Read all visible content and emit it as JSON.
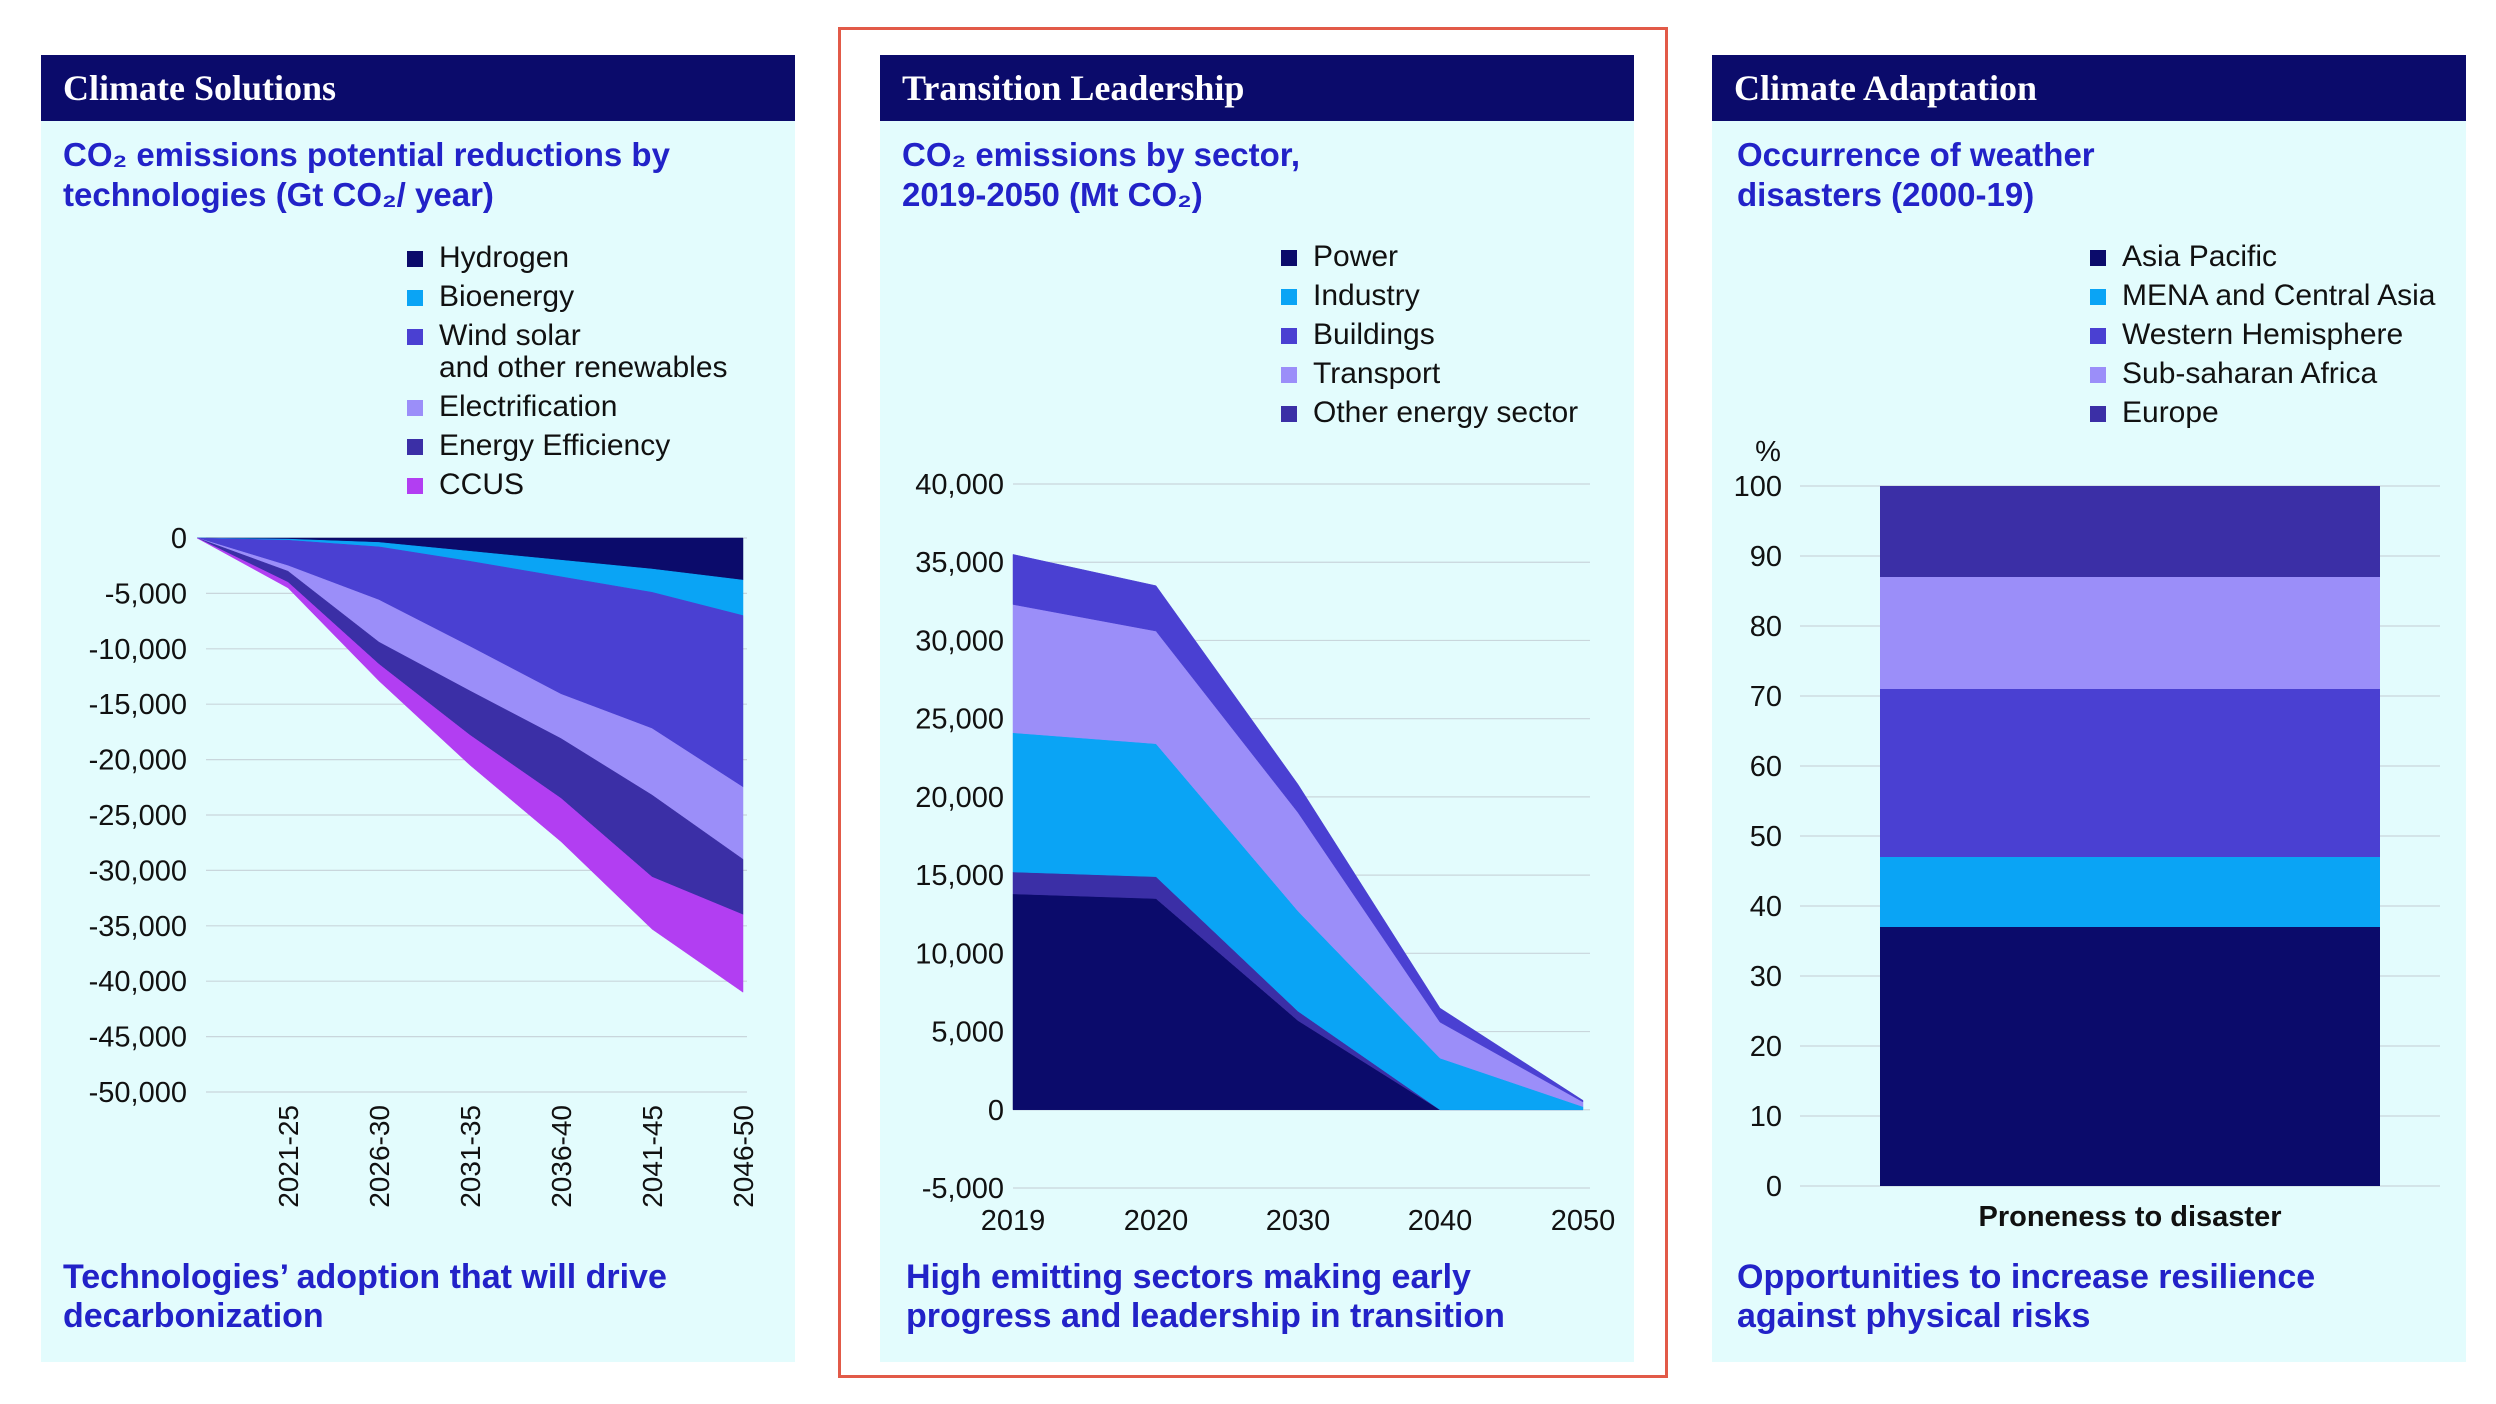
{
  "panels": [
    {
      "header": "Climate Solutions",
      "subtitle_line1": "CO₂ emissions potential reductions by",
      "subtitle_line2": "technologies (Gt CO₂/ year)",
      "footer_line1": "Technologies’ adoption that will drive",
      "footer_line2": "decarbonization",
      "legend": [
        {
          "label": "Hydrogen",
          "color": "#0b0b6b"
        },
        {
          "label": "Bioenergy",
          "color": "#0aa4f5"
        },
        {
          "label": "Wind solar",
          "label2": "and other renewables",
          "color": "#4a40d2"
        },
        {
          "label": "Electrification",
          "color": "#9b8ef9"
        },
        {
          "label": "Energy Efficiency",
          "color": "#3b2fa6"
        },
        {
          "label": "CCUS",
          "color": "#b23ef2"
        }
      ]
    },
    {
      "header": "Transition Leadership",
      "subtitle_line1": "CO₂ emissions by sector,",
      "subtitle_line2": "2019-2050 (Mt CO₂)",
      "footer_line1": "High emitting sectors making early",
      "footer_line2": "progress and leadership in transition",
      "legend": [
        {
          "label": "Power",
          "color": "#0b0b6b"
        },
        {
          "label": "Industry",
          "color": "#0aa4f5"
        },
        {
          "label": "Buildings",
          "color": "#4a40d2"
        },
        {
          "label": "Transport",
          "color": "#9b8ef9"
        },
        {
          "label": "Other energy sector",
          "color": "#3b2fa6"
        }
      ]
    },
    {
      "header": "Climate Adaptation",
      "subtitle_line1": "Occurrence of weather",
      "subtitle_line2": "disasters (2000-19)",
      "footer_line1": "Opportunities to increase resilience",
      "footer_line2": "against physical risks",
      "legend": [
        {
          "label": "Asia Pacific",
          "color": "#0b0b6b"
        },
        {
          "label": "MENA and Central Asia",
          "color": "#0aa4f5"
        },
        {
          "label": "Western Hemisphere",
          "color": "#4a40d2"
        },
        {
          "label": "Sub-saharan Africa",
          "color": "#9b8ef9"
        },
        {
          "label": "Europe",
          "color": "#3b2fa6"
        }
      ]
    }
  ],
  "chart_data": [
    {
      "type": "area",
      "title": "CO₂ emissions potential reductions by technologies (Gt CO₂/ year)",
      "x": [
        "",
        "2021-25",
        "2026-30",
        "2031-35",
        "2036-40",
        "2041-45",
        "2046-50"
      ],
      "ylim": [
        -50000,
        0
      ],
      "yticks": [
        0,
        -5000,
        -10000,
        -15000,
        -20000,
        -25000,
        -30000,
        -35000,
        -40000,
        -45000,
        -50000
      ],
      "ytick_labels": [
        "0",
        "-5,000",
        "-10,000",
        "-15,000",
        "-20,000",
        "-25,000",
        "-30,000",
        "-35,000",
        "-40,000",
        "-45,000",
        "-50,000"
      ],
      "series": [
        {
          "name": "Hydrogen",
          "values": [
            0,
            -100,
            -400,
            -1200,
            -2000,
            -2800,
            -3800
          ]
        },
        {
          "name": "Bioenergy",
          "values": [
            0,
            -100,
            -400,
            -900,
            -1500,
            -2100,
            -3200
          ]
        },
        {
          "name": "Wind solar and other renewables",
          "values": [
            0,
            -2300,
            -4800,
            -7700,
            -10600,
            -12300,
            -15500
          ]
        },
        {
          "name": "Electrification",
          "values": [
            0,
            -500,
            -3800,
            -4000,
            -4000,
            -6000,
            -6500
          ]
        },
        {
          "name": "Energy Efficiency",
          "values": [
            0,
            -1000,
            -2000,
            -4000,
            -5400,
            -7400,
            -5000
          ]
        },
        {
          "name": "CCUS",
          "values": [
            0,
            -500,
            -1500,
            -2700,
            -3900,
            -4700,
            -7000
          ]
        }
      ]
    },
    {
      "type": "area",
      "title": "CO₂ emissions by sector, 2019-2050 (Mt CO₂)",
      "x": [
        "2019",
        "2020",
        "2030",
        "2040",
        "2050"
      ],
      "ylim": [
        -5000,
        40000
      ],
      "yticks": [
        -5000,
        0,
        5000,
        10000,
        15000,
        20000,
        25000,
        30000,
        35000,
        40000
      ],
      "ytick_labels": [
        "-5,000",
        "0",
        "5,000",
        "10,000",
        "15,000",
        "20,000",
        "25,000",
        "30,000",
        "35,000",
        "40,000"
      ],
      "series": [
        {
          "name": "Power",
          "values": [
            13800,
            13500,
            5700,
            0,
            0
          ]
        },
        {
          "name": "Other energy sector",
          "values": [
            1400,
            1400,
            600,
            0,
            0
          ]
        },
        {
          "name": "Industry",
          "values": [
            8900,
            8500,
            6400,
            3300,
            200
          ]
        },
        {
          "name": "Transport",
          "values": [
            8200,
            7200,
            6300,
            2300,
            300
          ]
        },
        {
          "name": "Buildings",
          "values": [
            3200,
            2900,
            1800,
            900,
            100
          ]
        }
      ]
    },
    {
      "type": "bar",
      "title": "Occurrence of weather disasters (2000-19)",
      "categories": [
        "Proneness to disaster"
      ],
      "ylabel": "%",
      "ylim": [
        0,
        100
      ],
      "yticks": [
        0,
        10,
        20,
        30,
        40,
        50,
        60,
        70,
        80,
        90,
        100
      ],
      "ytick_labels": [
        "0",
        "10",
        "20",
        "30",
        "40",
        "50",
        "60",
        "70",
        "80",
        "90",
        "100"
      ],
      "series": [
        {
          "name": "Asia Pacific",
          "values": [
            37
          ]
        },
        {
          "name": "MENA and Central Asia",
          "values": [
            10
          ]
        },
        {
          "name": "Western Hemisphere",
          "values": [
            24
          ]
        },
        {
          "name": "Sub-saharan Africa",
          "values": [
            16
          ]
        },
        {
          "name": "Europe",
          "values": [
            13
          ]
        }
      ]
    }
  ]
}
